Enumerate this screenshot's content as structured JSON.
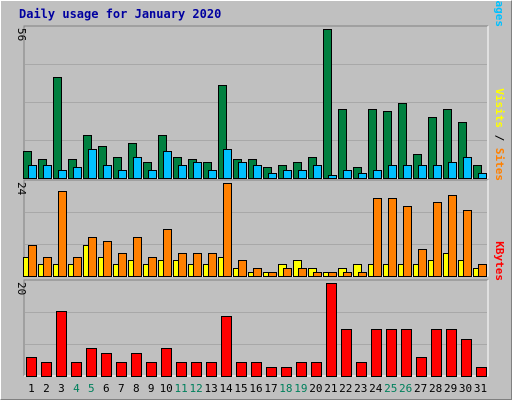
{
  "title": "Daily usage for January 2020",
  "colors": {
    "hits": "#008040",
    "files": "#00c0ff",
    "sites": "#ff8000",
    "visits": "#ffff00",
    "kbytes": "#ff0000",
    "panel_bg": "#c0c0c0",
    "day_label": "#000000",
    "weekend_label": "#00805c",
    "title": "#0000a0"
  },
  "days": [
    "1",
    "2",
    "3",
    "4",
    "5",
    "6",
    "7",
    "8",
    "9",
    "10",
    "11",
    "12",
    "13",
    "14",
    "15",
    "16",
    "17",
    "18",
    "19",
    "20",
    "21",
    "22",
    "23",
    "24",
    "25",
    "26",
    "27",
    "28",
    "29",
    "30",
    "31"
  ],
  "weekend_days": [
    "4",
    "5",
    "11",
    "12",
    "18",
    "19",
    "25",
    "26"
  ],
  "chart_data": {
    "type": "bar",
    "categories": [
      "1",
      "2",
      "3",
      "4",
      "5",
      "6",
      "7",
      "8",
      "9",
      "10",
      "11",
      "12",
      "13",
      "14",
      "15",
      "16",
      "17",
      "18",
      "19",
      "20",
      "21",
      "22",
      "23",
      "24",
      "25",
      "26",
      "27",
      "28",
      "29",
      "30",
      "31"
    ],
    "panels": [
      {
        "id": "hits",
        "max_label": "56",
        "legend": [
          {
            "text": "Hits",
            "color": "#008040"
          },
          {
            "text": " / ",
            "color": "#000000"
          },
          {
            "text": "Files",
            "color": "#00c0ff"
          },
          {
            "text": " / ",
            "color": "#000000"
          },
          {
            "text": "Pages",
            "color": "#00c0ff"
          }
        ],
        "ylim": [
          0,
          56
        ],
        "series": [
          {
            "name": "Hits",
            "color": "#008040",
            "values": [
              10,
              7,
              38,
              7,
              16,
              12,
              8,
              13,
              6,
              16,
              8,
              7,
              6,
              35,
              7,
              7,
              4,
              5,
              6,
              8,
              56,
              26,
              4,
              26,
              25,
              28,
              9,
              23,
              26,
              21,
              5
            ]
          },
          {
            "name": "Files",
            "color": "#00c0ff",
            "values": [
              5,
              5,
              3,
              4,
              11,
              5,
              3,
              8,
              3,
              10,
              5,
              6,
              3,
              11,
              6,
              5,
              2,
              3,
              3,
              5,
              1,
              3,
              2,
              3,
              5,
              5,
              5,
              5,
              6,
              8,
              2
            ]
          }
        ]
      },
      {
        "id": "sites",
        "max_label": "24",
        "legend": [
          {
            "text": "Visits",
            "color": "#ffff00"
          },
          {
            "text": " / ",
            "color": "#000000"
          },
          {
            "text": "Sites",
            "color": "#ff8000"
          }
        ],
        "ylim": [
          0,
          24
        ],
        "series": [
          {
            "name": "Visits",
            "color": "#ffff00",
            "values": [
              5,
              3,
              3,
              3,
              8,
              5,
              3,
              4,
              3,
              4,
              4,
              3,
              3,
              5,
              2,
              1,
              1,
              3,
              4,
              2,
              1,
              2,
              3,
              3,
              3,
              3,
              3,
              4,
              6,
              4,
              2
            ]
          },
          {
            "name": "Sites",
            "color": "#ff8000",
            "values": [
              8,
              5,
              22,
              5,
              10,
              9,
              6,
              10,
              5,
              12,
              6,
              6,
              6,
              24,
              4,
              2,
              1,
              2,
              2,
              1,
              1,
              1,
              1,
              20,
              20,
              18,
              7,
              19,
              21,
              17,
              3
            ]
          }
        ]
      },
      {
        "id": "kbytes",
        "max_label": "20",
        "legend": [
          {
            "text": "KBytes",
            "color": "#ff0000"
          }
        ],
        "ylim": [
          0,
          20
        ],
        "series": [
          {
            "name": "KBytes",
            "color": "#ff0000",
            "values": [
              4,
              3,
              14,
              3,
              6,
              5,
              3,
              5,
              3,
              6,
              3,
              3,
              3,
              13,
              3,
              3,
              2,
              2,
              3,
              3,
              20,
              10,
              3,
              10,
              10,
              10,
              4,
              10,
              10,
              8,
              2
            ]
          }
        ]
      }
    ]
  }
}
